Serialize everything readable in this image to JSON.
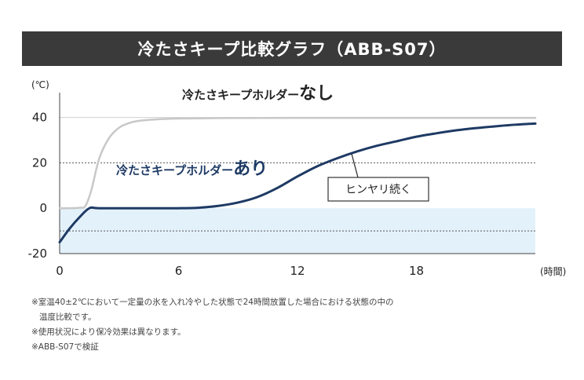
{
  "title": "冷たさキープ比較グラフ（ABB-S07）",
  "chart_data": {
    "type": "line",
    "y_unit": "(℃)",
    "x_unit": "(時間)",
    "xlim": [
      0,
      24
    ],
    "ylim": [
      -20,
      44
    ],
    "x_ticks": [
      "0",
      "6",
      "12",
      "18"
    ],
    "x_tick_values": [
      0,
      6,
      12,
      18
    ],
    "y_ticks": [
      "40",
      "20",
      "0",
      "-20"
    ],
    "y_tick_values": [
      40,
      20,
      0,
      -20
    ],
    "dashed_lines": [
      20,
      -10
    ],
    "shaded_band": [
      -20,
      0
    ],
    "series": [
      {
        "name": "冷たさキープホルダーなし",
        "name_main": "冷たさキープホルダー",
        "name_emph": "なし",
        "color": "#c8c8c8",
        "x": [
          0,
          0.5,
          1,
          1.3,
          1.6,
          2,
          2.5,
          3,
          3.5,
          4,
          5,
          6,
          8,
          12,
          18,
          24
        ],
        "y": [
          0,
          0,
          0.2,
          1,
          8,
          22,
          31,
          35.5,
          37.5,
          38.5,
          39.2,
          39.5,
          39.7,
          39.8,
          39.8,
          39.8
        ]
      },
      {
        "name": "冷たさキープホルダーあり",
        "name_main": "冷たさキープホルダー",
        "name_emph": "あり",
        "color": "#1e3a64",
        "x": [
          0,
          0.5,
          1,
          1.5,
          2,
          4,
          6,
          7,
          8,
          9,
          10,
          11,
          12,
          13,
          14,
          15,
          16,
          17,
          18,
          19,
          20,
          21,
          22,
          23,
          24
        ],
        "y": [
          -15,
          -9,
          -4,
          0,
          0,
          0,
          0,
          0.2,
          1,
          2.5,
          5,
          9,
          14,
          18.5,
          22,
          25,
          27.5,
          29.5,
          31.5,
          33,
          34.3,
          35.3,
          36.1,
          36.8,
          37.3
        ]
      }
    ],
    "annotation": "ヒンヤリ続く"
  },
  "notes": [
    "※室温40±2℃において一定量の氷を入れ冷やした状態で24時間放置した場合における状態の中の",
    "温度比較です。",
    "※使用状況により保冷効果は異なります。",
    "※ABB-S07で検証"
  ]
}
